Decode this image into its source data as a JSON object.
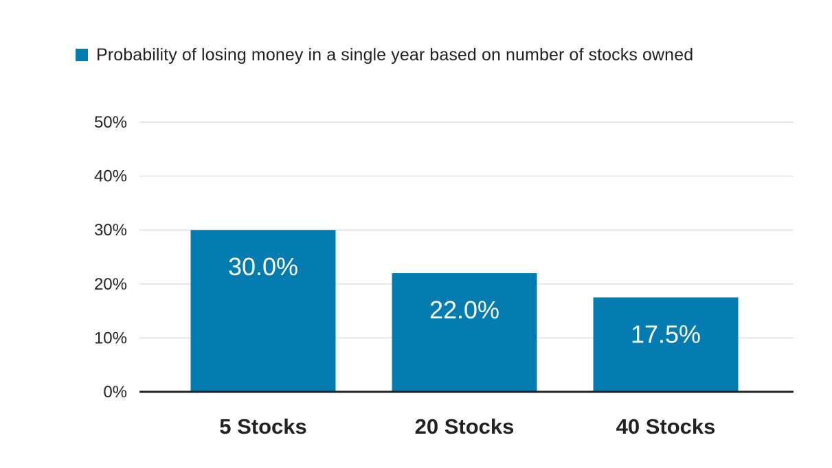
{
  "chart_data": {
    "type": "bar",
    "categories": [
      "5 Stocks",
      "20 Stocks",
      "40 Stocks"
    ],
    "series": [
      {
        "name": "Probability of losing money in a single year based on number of stocks owned",
        "values": [
          30.0,
          22.0,
          17.5
        ],
        "data_labels": [
          "30.0%",
          "22.0%",
          "17.5%"
        ]
      }
    ],
    "ylim": [
      0,
      50
    ],
    "yticks": [
      0,
      10,
      20,
      30,
      40,
      50
    ],
    "ytick_labels": [
      "0%",
      "10%",
      "20%",
      "30%",
      "40%",
      "50%"
    ],
    "grid": true,
    "legend_position": "top-left",
    "colors": {
      "bar": "#047cb0",
      "grid": "#e6e6e6",
      "axis": "#222222"
    }
  }
}
